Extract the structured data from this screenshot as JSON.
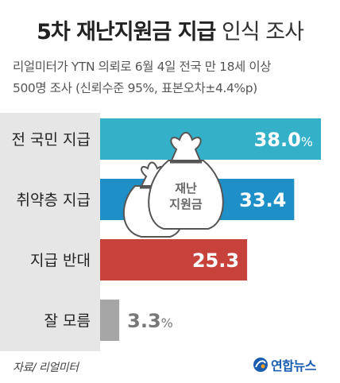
{
  "title_bold": "5차 재난지원금 지급",
  "title_light": "인식 조사",
  "subtitle_line1": "리얼미터가 YTN 의뢰로 6월 4일 전국 만 18세 이상",
  "subtitle_line2": "500명 조사 (신뢰수준 95%, 표본오차±4.4%p)",
  "source": "자료/ 리얼미터",
  "logo_text": "연합뉴스",
  "illustration_label_line1": "재난",
  "illustration_label_line2": "지원금",
  "colors": {
    "bar1": "#35b0c9",
    "bar2": "#1e8fc7",
    "bar3": "#c8423c",
    "bar4": "#a6a6a6",
    "band": "#e6e6e6"
  },
  "chart_data": {
    "type": "bar",
    "orientation": "horizontal",
    "categories": [
      "전 국민 지급",
      "취약층 지급",
      "지급 반대",
      "잘 모름"
    ],
    "values": [
      38.0,
      33.4,
      25.3,
      3.3
    ],
    "value_labels": [
      "38.0",
      "33.4",
      "25.3",
      "3.3"
    ],
    "unit": "%",
    "unit_shown_on": [
      0,
      3
    ],
    "xlim": [
      0,
      38.0
    ],
    "grid": false,
    "legend": "none"
  }
}
